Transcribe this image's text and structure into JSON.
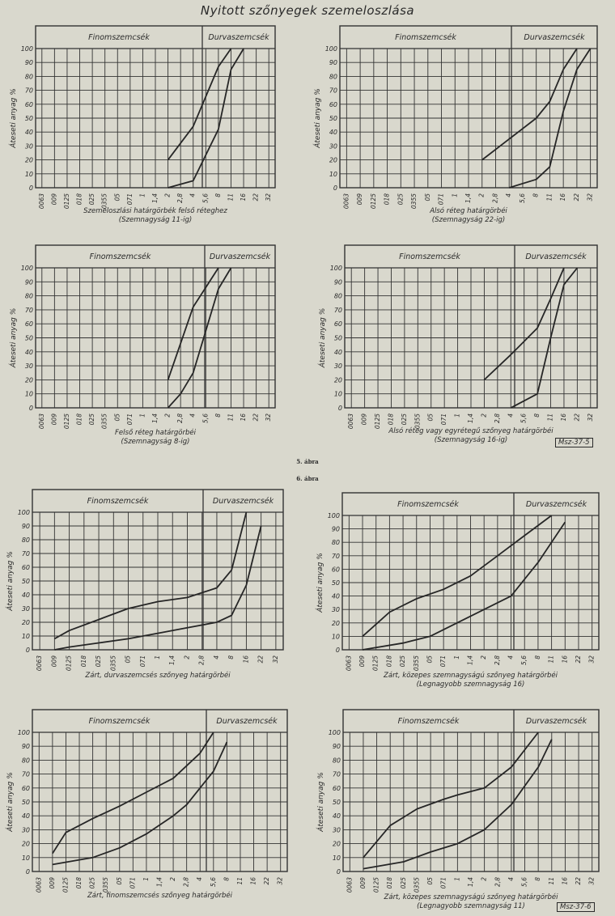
{
  "title": "Nyitott szőnyegek szemeloszlása",
  "fig5_label": "5. ábra",
  "fig6_label": "6. ábra",
  "stamp1": "Msz-37-5",
  "stamp2": "Msz-37-6",
  "chart_data": [
    {
      "type": "line",
      "header_left": "Finomszemcsék",
      "header_right": "Durvaszemcsék",
      "ylabel": "Áteseti anyag %",
      "xticks": [
        "0063",
        "009",
        "0125",
        "018",
        "025",
        "0355",
        "05",
        "071",
        "1",
        "1,4",
        "2",
        "2,8",
        "4",
        "5,6",
        "8",
        "11",
        "16",
        "22",
        "32"
      ],
      "yticks": [
        0,
        10,
        20,
        30,
        40,
        50,
        60,
        70,
        80,
        90,
        100
      ],
      "ylim": [
        0,
        100
      ],
      "caption": [
        "Szemeloszlási határgörbék felső réteghez",
        "(Szemnagyság 11-ig)"
      ],
      "series": [
        {
          "x": [
            "2",
            "4",
            "8",
            "11"
          ],
          "y": [
            20,
            44,
            87,
            100
          ]
        },
        {
          "x": [
            "2",
            "4",
            "8",
            "11",
            "16"
          ],
          "y": [
            0,
            5,
            42,
            85,
            100
          ]
        }
      ]
    },
    {
      "type": "line",
      "header_left": "Finomszemcsék",
      "header_right": "Durvaszemcsék",
      "ylabel": "Áteseti anyag %",
      "xticks": [
        "0063",
        "009",
        "0125",
        "018",
        "025",
        "0355",
        "05",
        "071",
        "1",
        "1,4",
        "2",
        "2,8",
        "4",
        "5,6",
        "8",
        "11",
        "16",
        "22",
        "32"
      ],
      "yticks": [
        0,
        10,
        20,
        30,
        40,
        50,
        60,
        70,
        80,
        90,
        100
      ],
      "ylim": [
        0,
        100
      ],
      "caption": [
        "Alsó réteg határgörbéi",
        "(Szemnagyság 22-ig)"
      ],
      "series": [
        {
          "x": [
            "2",
            "4",
            "8",
            "11",
            "16",
            "22"
          ],
          "y": [
            20,
            35,
            50,
            62,
            85,
            100
          ]
        },
        {
          "x": [
            "4",
            "8",
            "11",
            "16",
            "22",
            "32"
          ],
          "y": [
            0,
            6,
            15,
            55,
            85,
            100
          ]
        }
      ]
    },
    {
      "type": "line",
      "header_left": "Finomszemcsék",
      "header_right": "Durvaszemcsék",
      "ylabel": "Áteseti anyag %",
      "xticks": [
        "0063",
        "009",
        "0125",
        "018",
        "025",
        "0355",
        "05",
        "071",
        "1",
        "1,4",
        "2",
        "2,8",
        "4",
        "5,6",
        "8",
        "11",
        "16",
        "22",
        "32"
      ],
      "yticks": [
        0,
        10,
        20,
        30,
        40,
        50,
        60,
        70,
        80,
        90,
        100
      ],
      "ylim": [
        0,
        100
      ],
      "caption": [
        "Felső réteg határgörbéi",
        "(Szemnagyság 8-ig)"
      ],
      "series": [
        {
          "x": [
            "2",
            "4",
            "8"
          ],
          "y": [
            20,
            72,
            100
          ]
        },
        {
          "x": [
            "2",
            "2,8",
            "4",
            "8",
            "11"
          ],
          "y": [
            0,
            10,
            25,
            85,
            100
          ]
        }
      ]
    },
    {
      "type": "line",
      "header_left": "Finomszemcsék",
      "header_right": "Durvaszemcsék",
      "ylabel": "Áteseti anyag %",
      "xticks": [
        "0063",
        "009",
        "0125",
        "018",
        "025",
        "0355",
        "05",
        "071",
        "1",
        "1,4",
        "2",
        "2,8",
        "4",
        "5,6",
        "8",
        "11",
        "16",
        "22",
        "32"
      ],
      "yticks": [
        0,
        10,
        20,
        30,
        40,
        50,
        60,
        70,
        80,
        90,
        100
      ],
      "ylim": [
        0,
        100
      ],
      "caption": [
        "Alsó réteg vagy egyrétegű szőnyeg határgörbéi",
        "(Szemnagyság 16-ig)"
      ],
      "series": [
        {
          "x": [
            "2",
            "4",
            "8",
            "11",
            "16"
          ],
          "y": [
            20,
            38,
            57,
            78,
            100
          ]
        },
        {
          "x": [
            "4",
            "8",
            "11",
            "16",
            "22"
          ],
          "y": [
            0,
            10,
            50,
            88,
            100
          ]
        }
      ]
    },
    {
      "type": "line",
      "header_left": "Finomszemcsék",
      "header_right": "Durvaszemcsék",
      "ylabel": "Áteseti anyag %",
      "xticks": [
        "0063",
        "009",
        "0125",
        "018",
        "025",
        "0355",
        "05",
        "071",
        "1",
        "1,4",
        "2",
        "2,8",
        "4",
        "8",
        "16",
        "22",
        "32"
      ],
      "yticks": [
        0,
        10,
        20,
        30,
        40,
        50,
        60,
        70,
        80,
        90,
        100
      ],
      "ylim": [
        0,
        100
      ],
      "caption": [
        "Zárt, durvaszemcsés szőnyeg határgörbéi"
      ],
      "series": [
        {
          "x": [
            "009",
            "0125",
            "025",
            "05",
            "1",
            "2",
            "4",
            "8",
            "16"
          ],
          "y": [
            8,
            14,
            22,
            30,
            35,
            38,
            45,
            58,
            100
          ]
        },
        {
          "x": [
            "009",
            "0125",
            "025",
            "05",
            "1",
            "2",
            "4",
            "8",
            "16",
            "22"
          ],
          "y": [
            0,
            2,
            5,
            8,
            12,
            16,
            20,
            25,
            47,
            90
          ]
        }
      ]
    },
    {
      "type": "line",
      "header_left": "Finomszemcsék",
      "header_right": "Durvaszemcsék",
      "ylabel": "Áteseti anyag %",
      "xticks": [
        "0063",
        "009",
        "0125",
        "018",
        "025",
        "0355",
        "05",
        "071",
        "1",
        "1,4",
        "2",
        "2,8",
        "4",
        "5,6",
        "8",
        "11",
        "16",
        "22",
        "32"
      ],
      "yticks": [
        0,
        10,
        20,
        30,
        40,
        50,
        60,
        70,
        80,
        90,
        100
      ],
      "ylim": [
        0,
        100
      ],
      "caption": [
        "Zárt, közepes szemnagyságú szőnyeg határgörbéi",
        "(Legnagyobb szemnagyság 16)"
      ],
      "series": [
        {
          "x": [
            "009",
            "018",
            "0355",
            "071",
            "1,4",
            "2,8",
            "5,6",
            "11"
          ],
          "y": [
            10,
            28,
            38,
            45,
            55,
            70,
            85,
            100
          ]
        },
        {
          "x": [
            "009",
            "025",
            "05",
            "1",
            "2",
            "4",
            "8",
            "16"
          ],
          "y": [
            0,
            5,
            10,
            20,
            30,
            40,
            65,
            95
          ]
        }
      ]
    },
    {
      "type": "line",
      "header_left": "Finomszemcsék",
      "header_right": "Durvaszemcsék",
      "ylabel": "Áteseti anyag %",
      "xticks": [
        "0063",
        "009",
        "0125",
        "018",
        "025",
        "0355",
        "05",
        "071",
        "1",
        "1,4",
        "2",
        "2,8",
        "4",
        "5,6",
        "8",
        "11",
        "16",
        "22",
        "32"
      ],
      "yticks": [
        0,
        10,
        20,
        30,
        40,
        50,
        60,
        70,
        80,
        90,
        100
      ],
      "ylim": [
        0,
        100
      ],
      "caption": [
        "Zárt, finomszemcsés szőnyeg határgörbéi"
      ],
      "series": [
        {
          "x": [
            "009",
            "0125",
            "025",
            "05",
            "1",
            "2",
            "4",
            "5,6"
          ],
          "y": [
            13,
            28,
            38,
            47,
            57,
            67,
            85,
            100
          ]
        },
        {
          "x": [
            "009",
            "025",
            "05",
            "1",
            "2",
            "2,8",
            "4",
            "5,6",
            "8"
          ],
          "y": [
            5,
            10,
            17,
            27,
            40,
            48,
            60,
            72,
            93
          ]
        }
      ]
    },
    {
      "type": "line",
      "header_left": "Finomszemcsék",
      "header_right": "Durvaszemcsék",
      "ylabel": "Áteseti anyag %",
      "xticks": [
        "0063",
        "009",
        "0125",
        "018",
        "025",
        "0355",
        "05",
        "071",
        "1",
        "1,4",
        "2",
        "2,8",
        "4",
        "5,6",
        "8",
        "11",
        "16",
        "22",
        "32"
      ],
      "yticks": [
        0,
        10,
        20,
        30,
        40,
        50,
        60,
        70,
        80,
        90,
        100
      ],
      "ylim": [
        0,
        100
      ],
      "caption": [
        "Zárt, közepes szemnagyságú szőnyeg határgörbéi",
        "(Legnagyobb szemnagyság 11)"
      ],
      "series": [
        {
          "x": [
            "009",
            "018",
            "0355",
            "071",
            "1",
            "2",
            "4",
            "8"
          ],
          "y": [
            10,
            33,
            45,
            52,
            55,
            60,
            75,
            100
          ]
        },
        {
          "x": [
            "009",
            "025",
            "05",
            "1",
            "2",
            "4",
            "8",
            "11"
          ],
          "y": [
            2,
            7,
            14,
            20,
            30,
            48,
            75,
            95
          ]
        }
      ]
    }
  ]
}
